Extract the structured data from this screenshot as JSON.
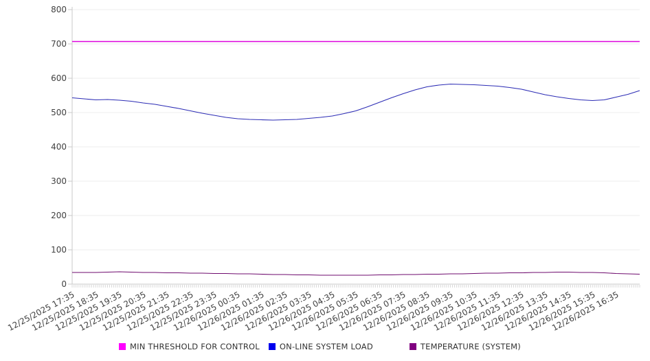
{
  "figure": {
    "background": "#ffffff",
    "grid_color": "#ededed",
    "spine_color": "#c9c9c9",
    "tick_color": "#c9c9c9",
    "label_color": "#404040"
  },
  "chart_data": {
    "type": "line",
    "title": "",
    "xlabel": "",
    "ylabel": "",
    "ylim": [
      0,
      800
    ],
    "y_tick_step": 100,
    "y_ticks": [
      0,
      100,
      200,
      300,
      400,
      500,
      600,
      700,
      800
    ],
    "grid": true,
    "legend_position": "bottom",
    "x_labels": [
      "12/25/2025 17:35",
      "12/25/2025 18:35",
      "12/25/2025 19:35",
      "12/25/2025 20:35",
      "12/25/2025 21:35",
      "12/25/2025 22:35",
      "12/25/2025 23:35",
      "12/26/2025 00:35",
      "12/26/2025 01:35",
      "12/26/2025 02:35",
      "12/26/2025 03:35",
      "12/26/2025 04:35",
      "12/26/2025 05:35",
      "12/26/2025 06:35",
      "12/26/2025 07:35",
      "12/26/2025 08:35",
      "12/26/2025 09:35",
      "12/26/2025 10:35",
      "12/26/2025 11:35",
      "12/26/2025 12:35",
      "12/26/2025 13:35",
      "12/26/2025 14:35",
      "12/26/2025 15:35",
      "12/26/2025 16:35"
    ],
    "x_resolution": "30min",
    "series": [
      {
        "name": "MIN THRESHOLD FOR CONTROL",
        "type": "constant",
        "value": 707,
        "swatch_color": "#ff00ff",
        "stroke_color": "#dd00dd",
        "stroke_width": 1.6
      },
      {
        "name": "ON-LINE SYSTEM LOAD",
        "type": "line",
        "swatch_color": "#0000ee",
        "stroke_color": "#2a2ab4",
        "stroke_width": 1.1,
        "values": [
          543,
          540,
          537,
          538,
          536,
          533,
          528,
          524,
          518,
          512,
          505,
          498,
          492,
          486,
          482,
          480,
          479,
          478,
          479,
          480,
          483,
          486,
          490,
          497,
          505,
          517,
          530,
          543,
          555,
          566,
          575,
          580,
          583,
          582,
          581,
          579,
          577,
          573,
          568,
          560,
          552,
          546,
          541,
          537,
          535,
          537,
          545,
          553,
          564
        ]
      },
      {
        "name": "TEMPERATURE (SYSTEM)",
        "type": "line",
        "swatch_color": "#800080",
        "stroke_color": "#6d096d",
        "stroke_width": 1.1,
        "values": [
          34,
          34,
          34,
          35,
          36,
          35,
          34,
          34,
          33,
          33,
          32,
          32,
          31,
          31,
          30,
          30,
          29,
          28,
          28,
          27,
          27,
          26,
          26,
          26,
          26,
          26,
          27,
          27,
          28,
          28,
          29,
          29,
          30,
          30,
          31,
          32,
          32,
          33,
          33,
          34,
          34,
          35,
          35,
          34,
          34,
          33,
          31,
          30,
          29
        ]
      }
    ]
  }
}
